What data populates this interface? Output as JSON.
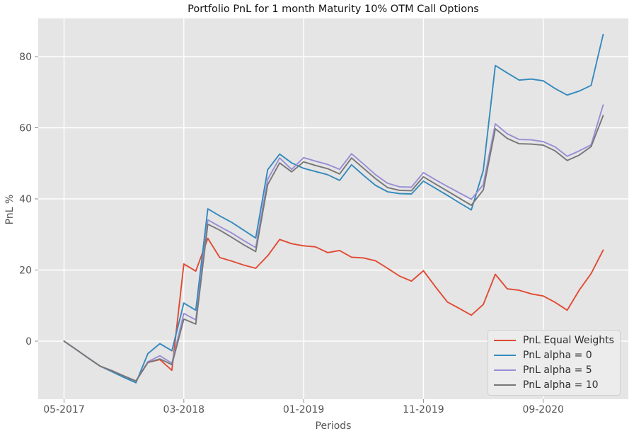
{
  "figure": {
    "title": "Portfolio PnL for 1 month Maturity 10% OTM Call Options",
    "xlabel": "Periods",
    "ylabel": "PnL %"
  },
  "chart_data": {
    "type": "line",
    "title": "Portfolio PnL for 1 month Maturity 10% OTM Call Options",
    "xlabel": "Periods",
    "ylabel": "PnL %",
    "background_color": "#E5E5E5",
    "grid": true,
    "grid_color": "#FFFFFF",
    "tick_label_color": "#555555",
    "legend_position": "lower right",
    "ylim": [
      -16.3,
      90.7
    ],
    "yticks": [
      0,
      20,
      40,
      60,
      80
    ],
    "xticks": {
      "indices": [
        0,
        10,
        20,
        30,
        40
      ],
      "labels": [
        "05-2017",
        "03-2018",
        "01-2019",
        "11-2019",
        "09-2020"
      ]
    },
    "x_labels": [
      "05-2017",
      "06-2017",
      "07-2017",
      "08-2017",
      "09-2017",
      "10-2017",
      "11-2017",
      "12-2017",
      "01-2018",
      "02-2018",
      "03-2018",
      "04-2018",
      "05-2018",
      "06-2018",
      "07-2018",
      "08-2018",
      "09-2018",
      "10-2018",
      "11-2018",
      "12-2018",
      "01-2019",
      "02-2019",
      "03-2019",
      "04-2019",
      "05-2019",
      "06-2019",
      "07-2019",
      "08-2019",
      "09-2019",
      "10-2019",
      "11-2019",
      "12-2019",
      "01-2020",
      "02-2020",
      "03-2020",
      "04-2020",
      "05-2020",
      "06-2020",
      "07-2020",
      "08-2020",
      "09-2020",
      "10-2020",
      "11-2020",
      "12-2020",
      "01-2021",
      "02-2021"
    ],
    "series": [
      {
        "name": "PnL Equal Weights",
        "color": "#E24A33",
        "values": [
          0,
          -2.3,
          -4.7,
          -7.0,
          -8.3,
          -9.8,
          -11.2,
          -6.0,
          -5.2,
          -8.2,
          21.7,
          19.7,
          28.9,
          23.5,
          22.5,
          21.4,
          20.5,
          24.0,
          28.6,
          27.4,
          26.8,
          26.5,
          24.9,
          25.5,
          23.6,
          23.4,
          22.6,
          20.5,
          18.3,
          16.9,
          19.8,
          15.3,
          11.0,
          9.2,
          7.3,
          10.3,
          18.8,
          14.7,
          14.3,
          13.3,
          12.7,
          10.9,
          8.7,
          14.3,
          19.0,
          25.6
        ]
      },
      {
        "name": "PnL alpha = 0",
        "color": "#348ABD",
        "values": [
          0,
          -2.3,
          -4.7,
          -7.0,
          -8.6,
          -10.2,
          -11.7,
          -3.5,
          -0.7,
          -2.7,
          10.7,
          8.7,
          37.2,
          35.2,
          33.4,
          31.2,
          29.0,
          48.2,
          52.6,
          50.1,
          48.6,
          47.7,
          46.8,
          45.2,
          49.6,
          46.6,
          43.8,
          42.0,
          41.5,
          41.4,
          45.0,
          43.0,
          41.0,
          38.9,
          36.9,
          48.0,
          77.5,
          75.4,
          73.4,
          73.7,
          73.2,
          71.0,
          69.2,
          70.3,
          71.9,
          86.2
        ]
      },
      {
        "name": "PnL alpha = 5",
        "color": "#988ED5",
        "values": [
          0,
          -2.3,
          -4.7,
          -7.0,
          -8.3,
          -9.8,
          -11.2,
          -5.8,
          -4.1,
          -6.2,
          7.8,
          6.0,
          34.1,
          32.2,
          30.4,
          28.3,
          26.3,
          45.5,
          51.5,
          48.3,
          51.6,
          50.6,
          49.7,
          48.3,
          52.7,
          49.8,
          46.8,
          44.4,
          43.4,
          43.3,
          47.4,
          45.4,
          43.5,
          41.7,
          39.9,
          44.0,
          61.1,
          58.3,
          56.7,
          56.6,
          56.1,
          54.6,
          52.0,
          53.5,
          55.2,
          66.4
        ]
      },
      {
        "name": "PnL alpha = 10",
        "color": "#777777",
        "values": [
          0,
          -2.3,
          -4.7,
          -7.0,
          -8.3,
          -9.8,
          -11.2,
          -6.0,
          -5.0,
          -6.6,
          6.2,
          4.8,
          32.9,
          31.2,
          29.2,
          27.1,
          25.2,
          44.0,
          50.1,
          47.6,
          50.4,
          49.4,
          48.5,
          47.0,
          51.5,
          48.6,
          45.7,
          43.2,
          42.4,
          42.3,
          46.2,
          44.2,
          42.2,
          40.2,
          38.2,
          42.5,
          59.7,
          57.0,
          55.5,
          55.4,
          55.1,
          53.5,
          50.8,
          52.3,
          54.7,
          63.4
        ]
      }
    ]
  }
}
